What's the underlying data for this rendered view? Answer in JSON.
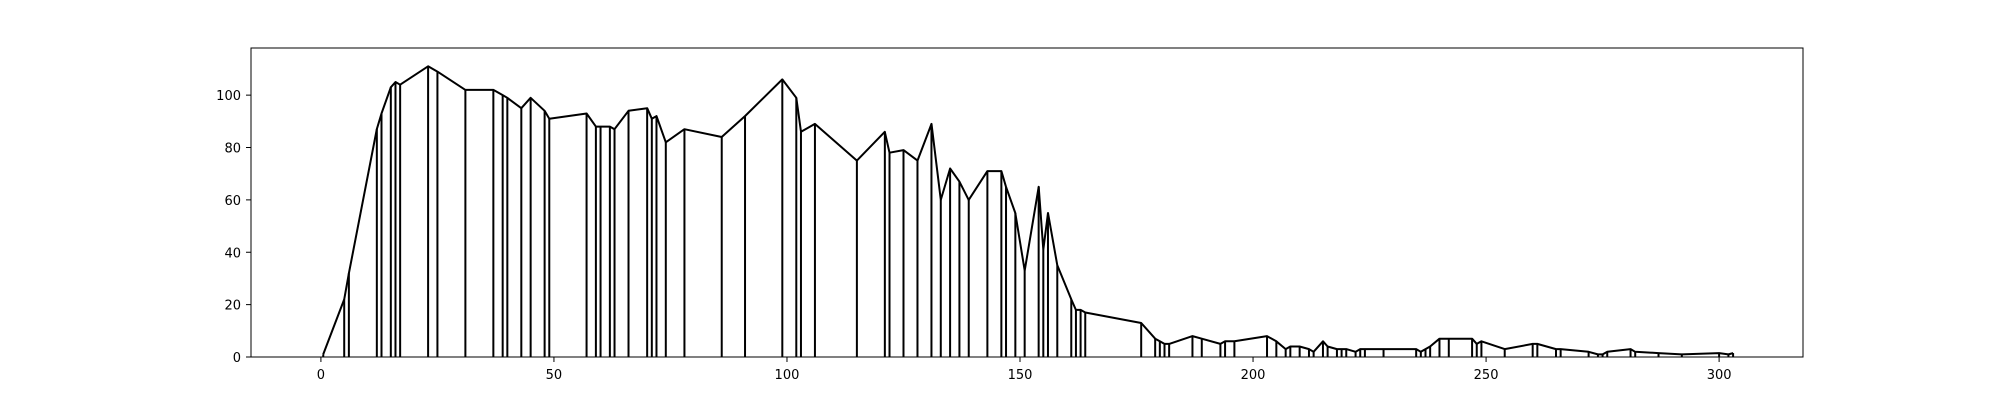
{
  "chart_data": {
    "type": "line",
    "title": "",
    "xlabel": "",
    "ylabel": "",
    "xlim": [
      -15,
      318
    ],
    "ylim": [
      0,
      118
    ],
    "grid": false,
    "xticks": [
      0,
      50,
      100,
      150,
      200,
      250,
      300
    ],
    "yticks": [
      0,
      20,
      40,
      60,
      80,
      100
    ],
    "series": [
      {
        "color": "#000000",
        "style": "line with vertical stems to zero",
        "points": [
          [
            0.5,
            1
          ],
          [
            5,
            22
          ],
          [
            6,
            32
          ],
          [
            12,
            87
          ],
          [
            13,
            93
          ],
          [
            15,
            103
          ],
          [
            16,
            105
          ],
          [
            17,
            104
          ],
          [
            23,
            111
          ],
          [
            25,
            109
          ],
          [
            31,
            102
          ],
          [
            37,
            102
          ],
          [
            39,
            100
          ],
          [
            40,
            99
          ],
          [
            43,
            95
          ],
          [
            45,
            99
          ],
          [
            48,
            94
          ],
          [
            49,
            91
          ],
          [
            57,
            93
          ],
          [
            59,
            88
          ],
          [
            60,
            88
          ],
          [
            62,
            88
          ],
          [
            63,
            87
          ],
          [
            66,
            94
          ],
          [
            70,
            95
          ],
          [
            71,
            91
          ],
          [
            72,
            92
          ],
          [
            74,
            82
          ],
          [
            78,
            87
          ],
          [
            86,
            84
          ],
          [
            91,
            92
          ],
          [
            99,
            106
          ],
          [
            102,
            99
          ],
          [
            103,
            86
          ],
          [
            106,
            89
          ],
          [
            115,
            75
          ],
          [
            121,
            86
          ],
          [
            122,
            78
          ],
          [
            125,
            79
          ],
          [
            128,
            75
          ],
          [
            131,
            89
          ],
          [
            133,
            60
          ],
          [
            135,
            72
          ],
          [
            137,
            67
          ],
          [
            139,
            60
          ],
          [
            143,
            71
          ],
          [
            146,
            71
          ],
          [
            147,
            65
          ],
          [
            149,
            55
          ],
          [
            151,
            33
          ],
          [
            154,
            65
          ],
          [
            155,
            41
          ],
          [
            156,
            55
          ],
          [
            158,
            35
          ],
          [
            161,
            22
          ],
          [
            162,
            18
          ],
          [
            163,
            18
          ],
          [
            164,
            17
          ],
          [
            176,
            13
          ],
          [
            179,
            7
          ],
          [
            180,
            6
          ],
          [
            181,
            5
          ],
          [
            182,
            5
          ],
          [
            187,
            8
          ],
          [
            189,
            7
          ],
          [
            193,
            5
          ],
          [
            194,
            6
          ],
          [
            196,
            6
          ],
          [
            203,
            8
          ],
          [
            205,
            6
          ],
          [
            207,
            3
          ],
          [
            208,
            4
          ],
          [
            210,
            4
          ],
          [
            212,
            3
          ],
          [
            213,
            2
          ],
          [
            215,
            6
          ],
          [
            216,
            4
          ],
          [
            218,
            3
          ],
          [
            219,
            3
          ],
          [
            220,
            3
          ],
          [
            222,
            2
          ],
          [
            223,
            3
          ],
          [
            224,
            3
          ],
          [
            228,
            3
          ],
          [
            235,
            3
          ],
          [
            236,
            2
          ],
          [
            237,
            3
          ],
          [
            238,
            4
          ],
          [
            240,
            7
          ],
          [
            242,
            7
          ],
          [
            247,
            7
          ],
          [
            248,
            5
          ],
          [
            249,
            6
          ],
          [
            254,
            3
          ],
          [
            260,
            5
          ],
          [
            261,
            5
          ],
          [
            265,
            3
          ],
          [
            266,
            3
          ],
          [
            272,
            2
          ],
          [
            274,
            1
          ],
          [
            275,
            1
          ],
          [
            276,
            2
          ],
          [
            281,
            3
          ],
          [
            282,
            2
          ],
          [
            287,
            1.5
          ],
          [
            292,
            1
          ],
          [
            300,
            1.5
          ],
          [
            302,
            1
          ],
          [
            303,
            1.5
          ]
        ]
      }
    ]
  }
}
